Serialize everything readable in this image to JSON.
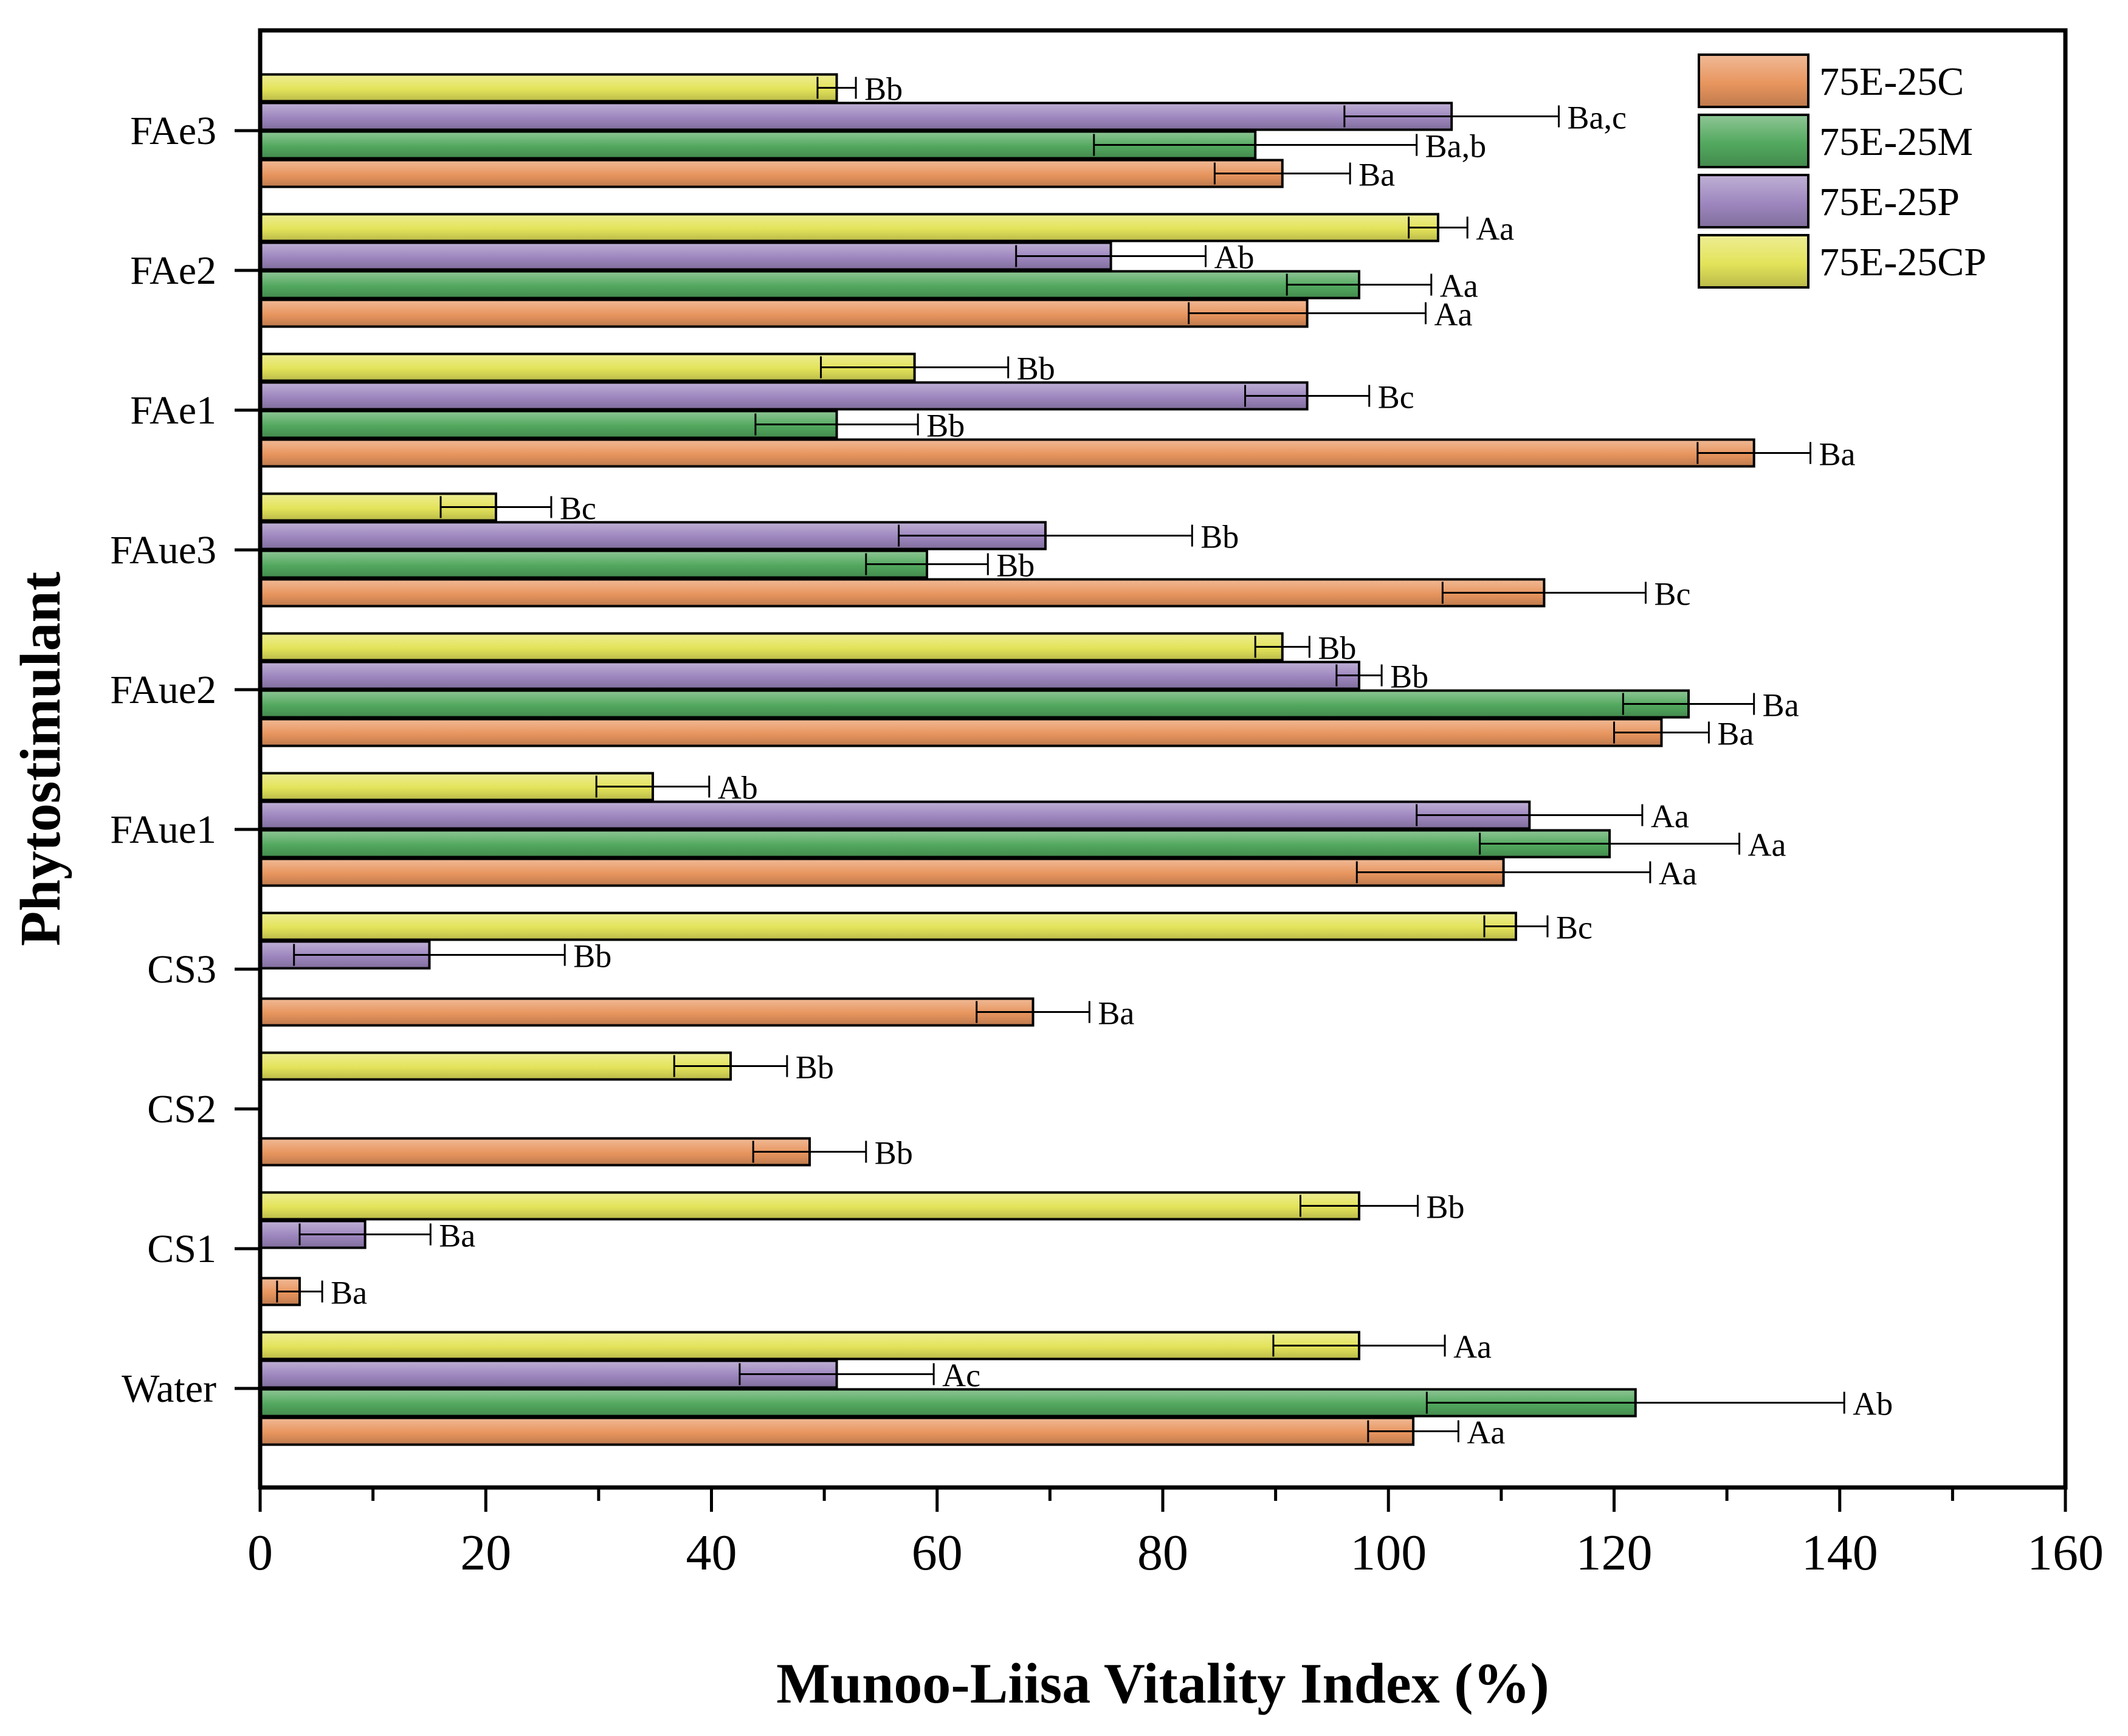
{
  "chart_data": {
    "type": "bar",
    "orientation": "horizontal",
    "title": "",
    "xlabel": "Munoo-Liisa Vitality Index (%)",
    "ylabel": "Phytostimulant",
    "xlim": [
      0,
      160
    ],
    "xticks": [
      "0",
      "20",
      "40",
      "60",
      "80",
      "100",
      "120",
      "140",
      "160"
    ],
    "categories": [
      "Water",
      "CS1",
      "CS2",
      "CS3",
      "FAue1",
      "FAue2",
      "FAue3",
      "FAe1",
      "FAe2",
      "FAe3"
    ],
    "legend_position": "top-right",
    "series": [
      {
        "name": "75E-25C",
        "color": "#E8955E",
        "values": [
          102.2,
          3.5,
          48.7,
          68.5,
          110.2,
          124.2,
          113.8,
          132.4,
          92.8,
          90.6
        ],
        "errors": [
          4.0,
          2.0,
          5.0,
          5.0,
          13.0,
          4.2,
          9.0,
          5.0,
          10.5,
          6.0
        ],
        "labels": [
          "Aa",
          "Ba",
          "Bb",
          "Ba",
          "Aa",
          "Ba",
          "Bc",
          "Ba",
          "Aa",
          "Ba"
        ]
      },
      {
        "name": "75E-25M",
        "color": "#52A85E",
        "values": [
          121.9,
          null,
          null,
          null,
          119.6,
          126.6,
          59.1,
          51.1,
          97.4,
          88.2
        ],
        "errors": [
          18.5,
          null,
          null,
          null,
          11.5,
          5.8,
          5.4,
          7.2,
          6.4,
          14.3
        ],
        "labels": [
          "Ab",
          "",
          "",
          "",
          "Aa",
          "Ba",
          "Bb",
          "Bb",
          "Aa",
          "Ba,b"
        ]
      },
      {
        "name": "75E-25P",
        "color": "#9D86BE",
        "values": [
          51.1,
          9.3,
          null,
          15.0,
          112.5,
          97.4,
          69.6,
          92.8,
          75.4,
          105.6
        ],
        "errors": [
          8.6,
          5.8,
          null,
          12.0,
          10.0,
          2.0,
          13.0,
          5.5,
          8.4,
          9.5
        ],
        "labels": [
          "Ac",
          "Ba",
          "",
          "Bb",
          "Aa",
          "Bb",
          "Bb",
          "Bc",
          "Ab",
          "Ba,c"
        ]
      },
      {
        "name": "75E-25CP",
        "color": "#E3E35A",
        "values": [
          97.4,
          97.4,
          41.7,
          111.3,
          34.8,
          90.6,
          20.9,
          58.0,
          104.4,
          51.1
        ],
        "errors": [
          7.6,
          5.2,
          5.0,
          2.8,
          5.0,
          2.4,
          4.9,
          8.3,
          2.6,
          1.7
        ],
        "labels": [
          "Aa",
          "Bb",
          "Bb",
          "Bc",
          "Ab",
          "Bb",
          "Bc",
          "Bb",
          "Aa",
          "Bb"
        ]
      }
    ]
  }
}
